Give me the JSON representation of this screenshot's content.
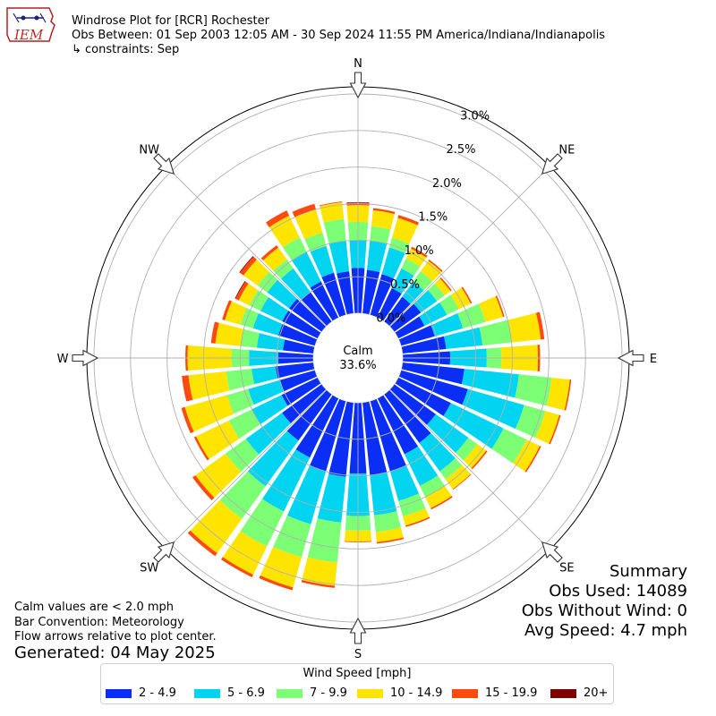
{
  "header": {
    "logo_text": "IEM",
    "title": "Windrose Plot for [RCR] Rochester",
    "obs_between": "Obs Between: 01 Sep 2003 12:05 AM - 30 Sep 2024 11:55 PM America/Indiana/Indianapolis",
    "constraints": "↳ constraints: Sep"
  },
  "footer": {
    "calm_note": "Calm values are < 2.0 mph",
    "bar_convention": "Bar Convention: Meteorology",
    "flow_note": "Flow arrows relative to plot center.",
    "generated": "Generated: 04 May 2025"
  },
  "summary": {
    "title": "Summary",
    "obs_used": "Obs Used: 14089",
    "obs_without_wind": "Obs Without Wind: 0",
    "avg_speed": "Avg Speed: 4.7 mph"
  },
  "legend": {
    "title": "Wind Speed [mph]",
    "items": [
      {
        "label": "2 - 4.9",
        "color": "#0b2ef5"
      },
      {
        "label": "5 - 6.9",
        "color": "#00d4f1"
      },
      {
        "label": "7 - 9.9",
        "color": "#7cff74"
      },
      {
        "label": "10 - 14.9",
        "color": "#ffe400"
      },
      {
        "label": "15 - 19.9",
        "color": "#ff4a0d"
      },
      {
        "label": "20+",
        "color": "#7f0000"
      }
    ]
  },
  "chart_data": {
    "type": "windrose",
    "calm_label": "Calm",
    "calm_value": "33.6%",
    "compass_labels": [
      "N",
      "NE",
      "E",
      "SE",
      "S",
      "SW",
      "W",
      "NW"
    ],
    "radial_ticks": [
      "0.0%",
      "0.5%",
      "1.0%",
      "1.5%",
      "2.0%",
      "2.5%",
      "3.0%"
    ],
    "radial_max": 3.0,
    "speed_bins": [
      "2 - 4.9",
      "5 - 6.9",
      "7 - 9.9",
      "10 - 14.9",
      "15 - 19.9",
      "20+"
    ],
    "bin_colors": [
      "#0b2ef5",
      "#00d4f1",
      "#7cff74",
      "#ffe400",
      "#ff4a0d",
      "#7f0000"
    ],
    "directions": [
      0,
      10,
      20,
      30,
      40,
      50,
      60,
      70,
      80,
      90,
      100,
      110,
      120,
      130,
      140,
      150,
      160,
      170,
      180,
      190,
      200,
      210,
      220,
      230,
      240,
      250,
      260,
      270,
      280,
      290,
      300,
      310,
      320,
      330,
      340,
      350
    ],
    "cumulative_percent": [
      [
        0.62,
        1.0,
        1.25,
        1.48,
        1.51,
        1.52
      ],
      [
        0.6,
        1.0,
        1.2,
        1.42,
        1.45,
        1.45
      ],
      [
        0.58,
        0.96,
        1.1,
        1.38,
        1.42,
        1.42
      ],
      [
        0.45,
        0.75,
        0.9,
        1.05,
        1.08,
        1.08
      ],
      [
        0.42,
        0.68,
        0.85,
        1.03,
        1.05,
        1.05
      ],
      [
        0.45,
        0.72,
        0.85,
        0.95,
        0.97,
        0.97
      ],
      [
        0.4,
        0.74,
        0.92,
        1.1,
        1.12,
        1.12
      ],
      [
        0.48,
        0.88,
        1.2,
        1.45,
        1.47,
        1.47
      ],
      [
        0.6,
        1.1,
        1.5,
        1.9,
        1.95,
        1.95
      ],
      [
        0.65,
        1.15,
        1.35,
        1.85,
        1.88,
        1.88
      ],
      [
        0.85,
        1.6,
        2.05,
        2.3,
        2.32,
        2.32
      ],
      [
        0.95,
        1.75,
        2.05,
        2.25,
        2.27,
        2.27
      ],
      [
        0.8,
        1.6,
        1.95,
        2.15,
        2.17,
        2.17
      ],
      [
        0.7,
        1.25,
        1.4,
        1.55,
        1.57,
        1.57
      ],
      [
        0.82,
        1.3,
        1.43,
        1.6,
        1.61,
        1.61
      ],
      [
        0.85,
        1.33,
        1.5,
        1.67,
        1.69,
        1.69
      ],
      [
        1.0,
        1.42,
        1.64,
        1.77,
        1.79,
        1.79
      ],
      [
        1.0,
        1.55,
        1.78,
        1.92,
        1.94,
        1.94
      ],
      [
        0.97,
        1.55,
        1.75,
        1.9,
        1.91,
        1.91
      ],
      [
        1.02,
        1.65,
        2.2,
        2.52,
        2.55,
        2.55
      ],
      [
        1.0,
        1.75,
        2.22,
        2.65,
        2.69,
        2.69
      ],
      [
        0.9,
        1.72,
        2.25,
        2.68,
        2.72,
        2.72
      ],
      [
        0.78,
        1.55,
        2.1,
        2.68,
        2.73,
        2.73
      ],
      [
        0.67,
        1.28,
        1.62,
        2.13,
        2.18,
        2.18
      ],
      [
        0.55,
        1.0,
        1.35,
        1.85,
        1.88,
        1.88
      ],
      [
        0.5,
        0.95,
        1.25,
        1.85,
        1.9,
        1.9
      ],
      [
        0.52,
        0.85,
        1.2,
        1.72,
        1.81,
        1.81
      ],
      [
        0.48,
        0.88,
        1.12,
        1.72,
        1.75,
        1.75
      ],
      [
        0.42,
        0.78,
        1.0,
        1.35,
        1.41,
        1.41
      ],
      [
        0.52,
        0.88,
        1.06,
        1.28,
        1.32,
        1.32
      ],
      [
        0.54,
        0.87,
        1.04,
        1.2,
        1.25,
        1.26
      ],
      [
        0.55,
        0.92,
        1.08,
        1.32,
        1.38,
        1.39
      ],
      [
        0.5,
        0.9,
        1.05,
        1.25,
        1.29,
        1.29
      ],
      [
        0.55,
        1.0,
        1.22,
        1.55,
        1.63,
        1.63
      ],
      [
        0.6,
        0.98,
        1.17,
        1.5,
        1.58,
        1.58
      ],
      [
        0.58,
        1.0,
        1.3,
        1.53,
        1.54,
        1.54
      ]
    ]
  }
}
